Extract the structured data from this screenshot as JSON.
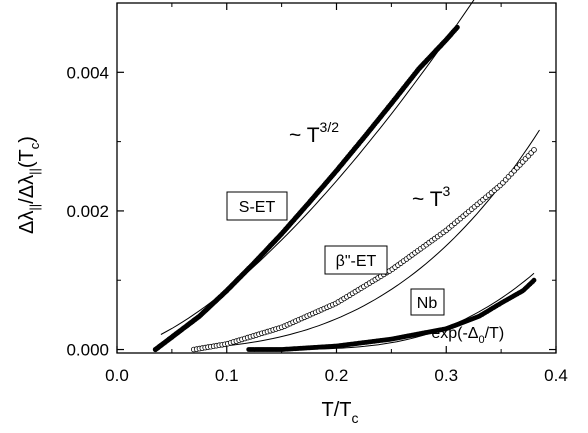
{
  "chart_data": {
    "type": "scatter",
    "title": "",
    "xlabel": {
      "main": "T/T",
      "sub": "c"
    },
    "ylabel": {
      "p1": "Δλ",
      "s1": "||",
      "p2": "/Δλ",
      "s2": "||",
      "p3": "(T",
      "s3": "c",
      "p4": ")"
    },
    "xlim": [
      0.0,
      0.4
    ],
    "ylim": [
      -5e-05,
      0.005
    ],
    "xticks": [
      "0.0",
      "0.1",
      "0.2",
      "0.3",
      "0.4"
    ],
    "yticks": [
      "0.000",
      "0.002",
      "0.004"
    ],
    "grid": false,
    "series": [
      {
        "name": "S-ET",
        "marker": "filled-dense",
        "x": [
          0.035,
          0.05,
          0.075,
          0.1,
          0.125,
          0.15,
          0.175,
          0.2,
          0.225,
          0.25,
          0.275,
          0.3,
          0.31
        ],
        "y": [
          0.0,
          0.00018,
          0.00048,
          0.00085,
          0.00125,
          0.00167,
          0.00212,
          0.00258,
          0.00306,
          0.00355,
          0.00405,
          0.00447,
          0.00465
        ]
      },
      {
        "name": "β\"-ET",
        "marker": "open-circle",
        "x": [
          0.07,
          0.1,
          0.15,
          0.2,
          0.25,
          0.3,
          0.35,
          0.38
        ],
        "y": [
          0.0,
          8e-05,
          0.00032,
          0.00067,
          0.00115,
          0.00172,
          0.00238,
          0.00288
        ]
      },
      {
        "name": "Nb",
        "marker": "filled",
        "x": [
          0.12,
          0.15,
          0.2,
          0.25,
          0.3,
          0.33,
          0.35,
          0.37,
          0.38
        ],
        "y": [
          0.0,
          0.0,
          5e-05,
          0.00015,
          0.0003,
          0.00048,
          0.00067,
          0.00085,
          0.001
        ]
      }
    ],
    "fits": [
      {
        "x": [
          0.04,
          0.34
        ],
        "exponent": 1.5,
        "ref": [
          0.3,
          0.00447
        ]
      },
      {
        "x": [
          0.075,
          0.385
        ],
        "exponent": 3,
        "ref": [
          0.35,
          0.00238
        ]
      },
      {
        "x": [
          0.13,
          0.38
        ],
        "kind": "exp",
        "ref": [
          0.38,
          0.0011
        ]
      }
    ],
    "annotations": {
      "t32": {
        "text": "~ T",
        "sup": "3/2"
      },
      "t3": {
        "text": "~ T",
        "sup": "3"
      },
      "exp": {
        "p1": "~exp(-Δ",
        "sub": "0",
        "p2": "/T)"
      },
      "boxes": [
        "S-ET",
        "β\"-ET",
        "Nb"
      ]
    }
  }
}
